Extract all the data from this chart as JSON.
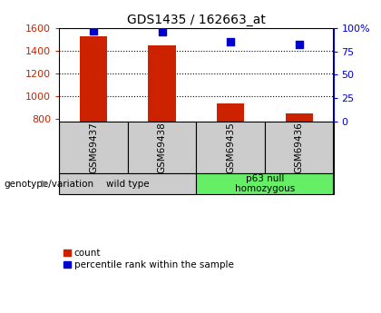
{
  "title": "GDS1435 / 162663_at",
  "samples": [
    "GSM69437",
    "GSM69438",
    "GSM69435",
    "GSM69436"
  ],
  "counts": [
    1530,
    1450,
    940,
    850
  ],
  "percentile_ranks": [
    97,
    96,
    85,
    83
  ],
  "ylim_left": [
    780,
    1600
  ],
  "ylim_right": [
    0,
    100
  ],
  "yticks_left": [
    800,
    1000,
    1200,
    1400,
    1600
  ],
  "yticks_right": [
    0,
    25,
    50,
    75,
    100
  ],
  "ytick_right_labels": [
    "0",
    "25",
    "50",
    "75",
    "100%"
  ],
  "bar_color": "#cc2200",
  "dot_color": "#0000cc",
  "bar_bottom": 780,
  "sample_bg_color": "#cccccc",
  "group_defs": [
    {
      "indices": [
        0,
        1
      ],
      "label": "wild type",
      "color": "#cccccc"
    },
    {
      "indices": [
        2,
        3
      ],
      "label": "p63 null\nhomozygous",
      "color": "#66ee66"
    }
  ],
  "legend_label_count": "count",
  "legend_label_pct": "percentile rank within the sample",
  "genotype_label": "genotype/variation",
  "left_axis_color": "#cc2200",
  "right_axis_color": "#0000cc",
  "grid_yticks": [
    1000,
    1200,
    1400
  ],
  "bar_width": 0.4,
  "dot_size": 30
}
